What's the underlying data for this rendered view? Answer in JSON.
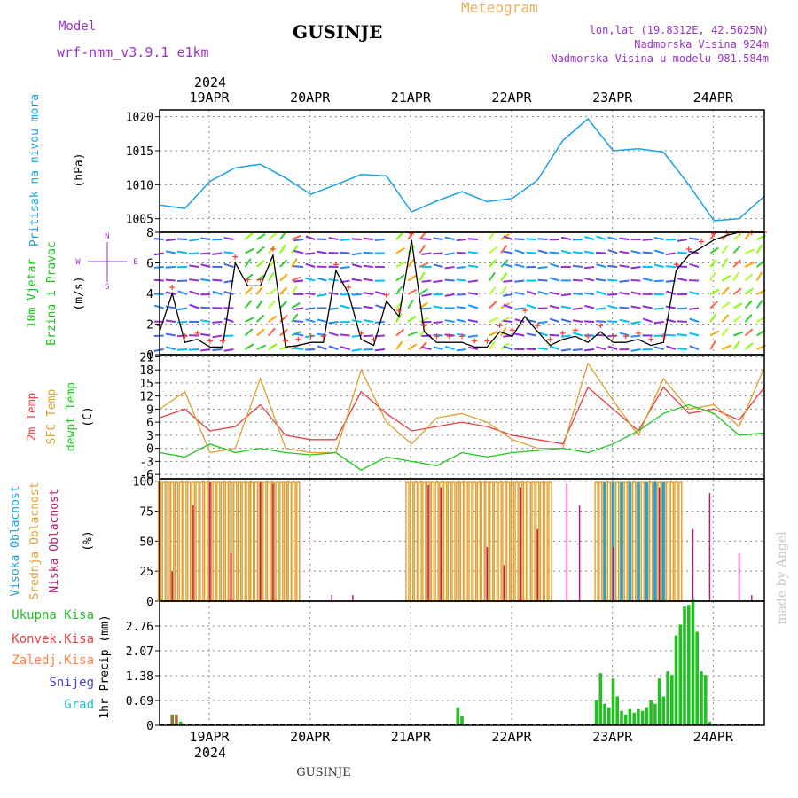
{
  "header": {
    "model_label": "Model",
    "model_name": "wrf-nmm_v3.9.1 e1km",
    "station": "GUSINJE",
    "product": "Meteogram",
    "lonlat": "lon,lat (19.8312E, 42.5625N)",
    "elevation": "Nadmorska Visina 924m",
    "model_elevation": "Nadmorska Visina u modelu 981.584m",
    "year_top": "2024",
    "year_bottom": "2024",
    "footer_station": "GUSINJE",
    "watermark": "made by Angel"
  },
  "colors": {
    "pressure": "#19a3e6",
    "wind_label": "#19c219",
    "wind_line": "#000000",
    "wind_max": "#ff3b2f",
    "temp2m": "#e84040",
    "sfc": "#e0a030",
    "dewpt": "#1ec81e",
    "high_cloud": "#19a3e6",
    "mid_cloud": "#e0a030",
    "low_cloud": "#c0187a",
    "total_precip": "#22c022",
    "conv_precip": "#e84040",
    "frozen_precip": "#ff8040",
    "snow": "#4040e0",
    "hail": "#20c0c0",
    "purple_text": "#9933cc",
    "orange_text": "#e8b060",
    "grid": "#888888"
  },
  "chart_data": [
    {
      "type": "line",
      "panel": "pressure",
      "ylabel_main": "Pritisak na nivou mora",
      "ylabel_unit": "(hPa)",
      "ylim": [
        1003,
        1021
      ],
      "yticks": [
        1005,
        1010,
        1015,
        1020
      ],
      "grid": true,
      "x_start": "2024-04-18 12:00",
      "x_end": "2024-04-24 12:00",
      "x_ticks": [
        "19APR",
        "20APR",
        "21APR",
        "22APR",
        "23APR",
        "24APR"
      ],
      "series": [
        {
          "x_hours": [
            0,
            6,
            12,
            18,
            24,
            30,
            36,
            42,
            48,
            54,
            60,
            66,
            72,
            78,
            84,
            90,
            96,
            102,
            108,
            114,
            120,
            126,
            132,
            138,
            144
          ],
          "values": [
            1007,
            1006.5,
            1010.5,
            1012.5,
            1013,
            1011,
            1008.6,
            1010,
            1011.5,
            1011.3,
            1006,
            1007.6,
            1009,
            1007.5,
            1008,
            1010.7,
            1016.5,
            1019.7,
            1015,
            1015.3,
            1014.8,
            1010,
            1004.7,
            1005,
            1008.3
          ]
        }
      ]
    },
    {
      "type": "line",
      "panel": "wind",
      "ylabel_main": "10m Vjetar",
      "ylabel_sub": "Brzina i Pravac",
      "ylabel_unit": "(m/s)",
      "compass": [
        "N",
        "W",
        "E",
        "S"
      ],
      "ylim": [
        0,
        8
      ],
      "yticks": [
        0,
        2,
        4,
        6,
        8
      ],
      "grid": true,
      "series": [
        {
          "name": "10m wind speed",
          "x_hours": [
            0,
            3,
            6,
            9,
            12,
            15,
            18,
            21,
            24,
            27,
            30,
            33,
            36,
            39,
            42,
            45,
            48,
            51,
            54,
            57,
            60,
            63,
            66,
            69,
            72,
            75,
            78,
            81,
            84,
            87,
            90,
            93,
            96,
            99,
            102,
            105,
            108,
            111,
            114,
            117,
            120,
            123,
            126,
            129,
            132,
            135,
            138,
            141,
            144
          ],
          "values": [
            1.5,
            4,
            0.8,
            1,
            0.5,
            0.5,
            6,
            4.5,
            4.5,
            6.5,
            0.5,
            0.6,
            0.8,
            0.8,
            5.5,
            4,
            1,
            0.6,
            3.5,
            2.5,
            7.5,
            1.5,
            0.8,
            0.8,
            0.8,
            0.5,
            0.5,
            1.5,
            1.2,
            2.5,
            1.5,
            0.6,
            1,
            1.2,
            0.8,
            1.5,
            0.8,
            0.8,
            1,
            0.6,
            0.8,
            5.5,
            6.5,
            7,
            7.5,
            7.8,
            8,
            8,
            8
          ]
        }
      ]
    },
    {
      "type": "line",
      "panel": "temperature",
      "ylabel_main": "2m Temp",
      "ylabel_sub": "SFC Temp",
      "ylabel_sub2": "dewpt Temp",
      "ylabel_unit": "(C)",
      "ylim": [
        -7,
        21.5
      ],
      "yticks": [
        -6,
        -3,
        0,
        3,
        6,
        9,
        12,
        15,
        18,
        21
      ],
      "grid": true,
      "series": [
        {
          "name": "2m Temp",
          "x_hours": [
            0,
            6,
            12,
            18,
            24,
            30,
            36,
            42,
            48,
            54,
            60,
            66,
            72,
            78,
            84,
            90,
            96,
            102,
            108,
            114,
            120,
            126,
            132,
            138,
            144
          ],
          "values": [
            7,
            9,
            4,
            5,
            10,
            3,
            2,
            2,
            13,
            8,
            4,
            5,
            6,
            5,
            3,
            2,
            1,
            14,
            9,
            4,
            14,
            8,
            9,
            6.5,
            14
          ]
        },
        {
          "name": "SFC Temp",
          "x_hours": [
            0,
            6,
            12,
            18,
            24,
            30,
            36,
            42,
            48,
            54,
            60,
            66,
            72,
            78,
            84,
            90,
            96,
            102,
            108,
            114,
            120,
            126,
            132,
            138,
            144
          ],
          "values": [
            9,
            13,
            -1,
            0,
            16,
            0,
            -1,
            -1,
            18,
            6,
            1,
            7,
            8,
            6,
            2,
            0,
            0,
            19.5,
            11,
            3,
            16,
            9,
            10,
            5,
            18.5
          ]
        },
        {
          "name": "dewpt Temp",
          "x_hours": [
            0,
            6,
            12,
            18,
            24,
            30,
            36,
            42,
            48,
            54,
            60,
            66,
            72,
            78,
            84,
            90,
            96,
            102,
            108,
            114,
            120,
            126,
            132,
            138,
            144
          ],
          "values": [
            -1,
            -2,
            1,
            -1,
            0,
            -1,
            -1.5,
            -1,
            -5,
            -2,
            -3,
            -4,
            -1,
            -2,
            -1,
            -0.5,
            0,
            -1,
            1,
            4,
            8,
            10,
            8,
            3,
            3.5
          ]
        }
      ]
    },
    {
      "type": "bar",
      "panel": "cloud",
      "ylabel_main": "Visoka Oblacnost",
      "ylabel_sub": "Srednja Oblacnost",
      "ylabel_sub2": "Niska Oblacnost",
      "ylabel_unit": "(%)",
      "ylim": [
        0,
        102
      ],
      "yticks": [
        0,
        25,
        50,
        75,
        100
      ],
      "grid": true,
      "series": [
        {
          "name": "Srednja Oblacnost",
          "segments_hours": [
            [
              0,
              22
            ],
            [
              21,
              33
            ],
            [
              59,
              93
            ],
            [
              104,
              124
            ]
          ],
          "values": [
            99,
            99,
            99,
            99
          ]
        },
        {
          "name": "Visoka Oblacnost",
          "segments_hours": [
            [
              106,
              121
            ]
          ],
          "values": [
            99
          ]
        },
        {
          "name": "Niska Oblacnost",
          "x_hours": [
            0,
            3,
            8,
            12,
            17,
            24,
            27,
            41,
            46,
            64,
            67,
            78,
            82,
            86,
            90,
            97,
            100,
            108,
            119,
            127,
            131,
            138,
            141
          ],
          "values": [
            99,
            25,
            80,
            99,
            40,
            99,
            98,
            5,
            5,
            97,
            95,
            45,
            30,
            95,
            60,
            98,
            80,
            45,
            95,
            60,
            90,
            40,
            5
          ]
        }
      ]
    },
    {
      "type": "bar",
      "panel": "precipitation",
      "ylabel_main": "1hr Precip (mm)",
      "legend": [
        "Ukupna Kisa",
        "Konvek.Kisa",
        "Zaledj.Kisa",
        "Snijeg",
        "Grad"
      ],
      "ylim": [
        0,
        3.45
      ],
      "yticks": [
        0,
        0.69,
        1.38,
        2.07,
        2.76
      ],
      "ytick_labels": [
        "0",
        "0.69",
        "1.38",
        "2.07",
        "2.76"
      ],
      "grid": true,
      "series": [
        {
          "name": "Ukupna Kisa",
          "x_hours": [
            3,
            4,
            5,
            71,
            72,
            104,
            105,
            106,
            107,
            108,
            109,
            110,
            111,
            112,
            113,
            114,
            115,
            116,
            117,
            118,
            119,
            120,
            121,
            122,
            123,
            124,
            125,
            126,
            127,
            128,
            129,
            130,
            131
          ],
          "values": [
            0.3,
            0.3,
            0.1,
            0.5,
            0.25,
            0.7,
            1.45,
            0.6,
            0.5,
            1.3,
            0.8,
            0.4,
            0.3,
            0.45,
            0.35,
            0.45,
            0.4,
            0.5,
            0.7,
            0.6,
            1.3,
            0.8,
            1.5,
            1.4,
            2.5,
            2.8,
            3.3,
            3.35,
            3.5,
            2.6,
            1.5,
            1.4,
            0.1
          ]
        },
        {
          "name": "Konvek.Kisa",
          "x_hours": [
            3,
            4
          ],
          "values": [
            0.3,
            0.3
          ]
        }
      ]
    }
  ]
}
